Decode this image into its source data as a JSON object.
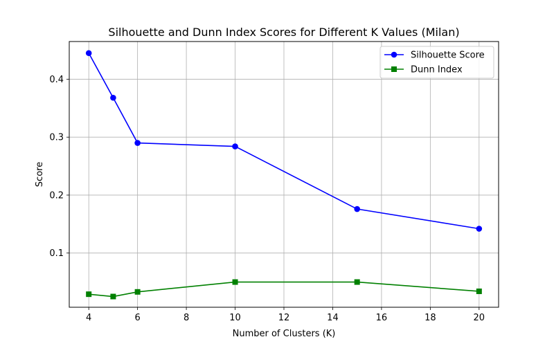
{
  "chart_data": {
    "type": "line",
    "title": "Silhouette and Dunn Index Scores for Different K Values (Milan)",
    "xlabel": "Number of Clusters (K)",
    "ylabel": "Score",
    "xlim": [
      3.2,
      20.8
    ],
    "ylim": [
      0.0065,
      0.465
    ],
    "xticks": [
      4,
      6,
      8,
      10,
      12,
      14,
      16,
      18,
      20
    ],
    "yticks": [
      0.1,
      0.2,
      0.3,
      0.4
    ],
    "grid": true,
    "legend_position": "top-right",
    "x": [
      4,
      5,
      6,
      10,
      15,
      20
    ],
    "series": [
      {
        "name": "Silhouette Score",
        "color": "#0000ff",
        "marker": "circle",
        "values": [
          0.445,
          0.368,
          0.29,
          0.284,
          0.176,
          0.142
        ]
      },
      {
        "name": "Dunn Index",
        "color": "#008000",
        "marker": "square",
        "values": [
          0.029,
          0.025,
          0.033,
          0.05,
          0.05,
          0.034
        ]
      }
    ]
  }
}
